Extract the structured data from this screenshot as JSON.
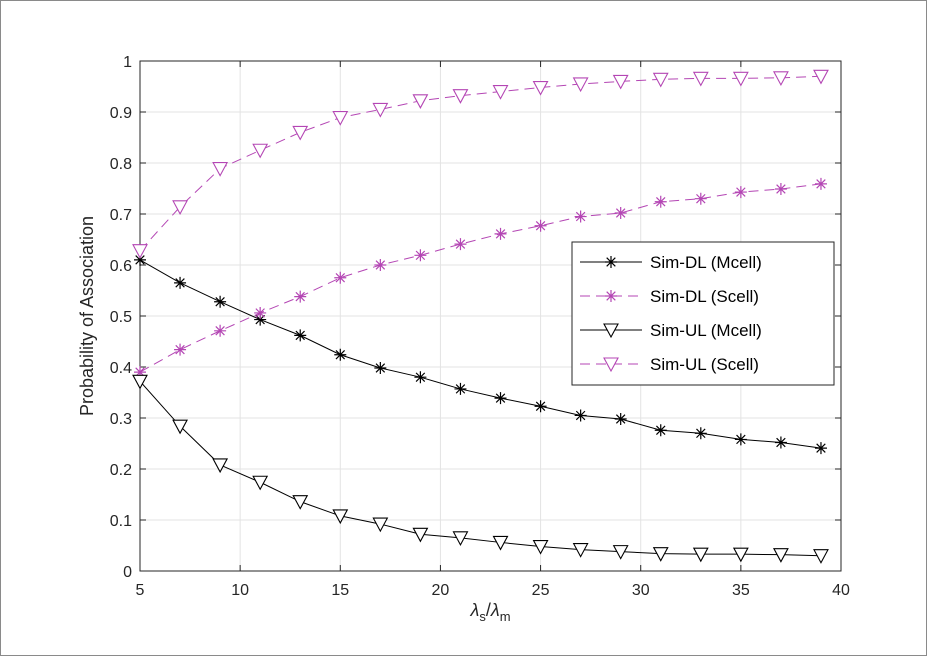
{
  "chart_data": {
    "type": "line",
    "title": "",
    "ylabel": "Probability of Association",
    "xlabel_parts": {
      "base1": "λ",
      "sub1": "s",
      "slash": "/",
      "base2": "λ",
      "sub2": "m"
    },
    "xlim": [
      5,
      40
    ],
    "ylim": [
      0,
      1
    ],
    "xticks": [
      "5",
      "10",
      "15",
      "20",
      "25",
      "30",
      "35",
      "40"
    ],
    "yticks": [
      "0",
      "0.1",
      "0.2",
      "0.3",
      "0.4",
      "0.5",
      "0.6",
      "0.7",
      "0.8",
      "0.9",
      "1"
    ],
    "grid": true,
    "legend_position": "right",
    "x": [
      5,
      7,
      9,
      11,
      13,
      15,
      17,
      19,
      21,
      23,
      25,
      27,
      29,
      31,
      33,
      35,
      37,
      39
    ],
    "series": [
      {
        "name": "Sim-DL (Mcell)",
        "color": "#000000",
        "dash": false,
        "marker": "asterisk",
        "values": [
          0.61,
          0.565,
          0.528,
          0.493,
          0.462,
          0.424,
          0.398,
          0.38,
          0.357,
          0.339,
          0.323,
          0.305,
          0.298,
          0.276,
          0.27,
          0.258,
          0.252,
          0.241
        ]
      },
      {
        "name": "Sim-DL (Scell)",
        "color": "#b446b4",
        "dash": true,
        "marker": "asterisk",
        "values": [
          0.39,
          0.434,
          0.471,
          0.506,
          0.538,
          0.575,
          0.6,
          0.619,
          0.641,
          0.661,
          0.677,
          0.695,
          0.702,
          0.724,
          0.73,
          0.743,
          0.749,
          0.759
        ]
      },
      {
        "name": "Sim-UL (Mcell)",
        "color": "#000000",
        "dash": false,
        "marker": "triangle-down",
        "values": [
          0.372,
          0.284,
          0.208,
          0.174,
          0.136,
          0.108,
          0.092,
          0.072,
          0.065,
          0.056,
          0.048,
          0.042,
          0.038,
          0.034,
          0.033,
          0.033,
          0.032,
          0.03
        ]
      },
      {
        "name": "Sim-UL (Scell)",
        "color": "#b446b4",
        "dash": true,
        "marker": "triangle-down",
        "values": [
          0.628,
          0.714,
          0.789,
          0.825,
          0.86,
          0.889,
          0.905,
          0.922,
          0.932,
          0.94,
          0.948,
          0.955,
          0.96,
          0.964,
          0.966,
          0.966,
          0.967,
          0.97
        ]
      }
    ]
  }
}
